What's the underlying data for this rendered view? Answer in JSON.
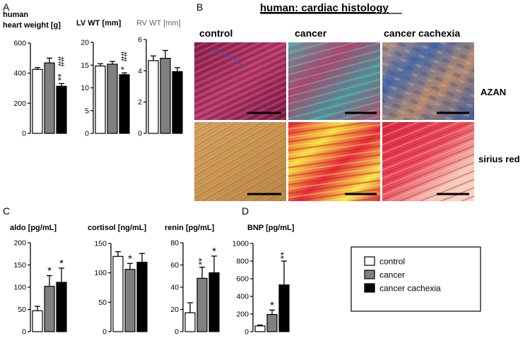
{
  "panel_letters": {
    "a": "A",
    "b": "B",
    "c": "C",
    "d": "D"
  },
  "colors": {
    "control": "#ffffff",
    "cancer": "#808080",
    "cachexia": "#000000"
  },
  "legend": {
    "items": [
      {
        "label": "control",
        "color": "#ffffff"
      },
      {
        "label": "cancer",
        "color": "#808080"
      },
      {
        "label": "cancer cachexia",
        "color": "#000000"
      }
    ]
  },
  "histology": {
    "title": "human: cardiac histology",
    "columns": [
      "control",
      "cancer",
      "cancer cachexia"
    ],
    "rows": [
      "AZAN",
      "sirius red"
    ]
  },
  "chart_data": [
    {
      "type": "bar",
      "panel": "A",
      "ylabel_lines": [
        "human",
        "heart weight [g]"
      ],
      "ylim": [
        0,
        600
      ],
      "yticks": [
        "0",
        "200",
        "400",
        "600"
      ],
      "categories": [
        "control",
        "cancer",
        "cancer cachexia"
      ],
      "values": [
        425,
        468,
        313
      ],
      "errors": [
        12,
        32,
        18
      ],
      "annotations": [
        "",
        "",
        "** ##"
      ]
    },
    {
      "type": "bar",
      "panel": "A",
      "ylabel_lines": [
        "LV WT [mm]"
      ],
      "ylim": [
        0,
        20
      ],
      "yticks": [
        "0",
        "5",
        "10",
        "15",
        "20"
      ],
      "categories": [
        "control",
        "cancer",
        "cancer cachexia"
      ],
      "values": [
        14.8,
        15.2,
        12.9
      ],
      "errors": [
        0.5,
        0.6,
        0.4
      ],
      "annotations": [
        "",
        "",
        "* ##"
      ]
    },
    {
      "type": "bar",
      "panel": "A",
      "ylabel_lines": [
        "RV WT [mm]"
      ],
      "ylim": [
        0,
        6
      ],
      "yticks": [
        "0",
        "2",
        "4",
        "6"
      ],
      "categories": [
        "control",
        "cancer",
        "cancer cachexia"
      ],
      "values": [
        4.65,
        4.8,
        3.95
      ],
      "errors": [
        0.3,
        0.5,
        0.25
      ],
      "annotations": [
        "",
        "",
        ""
      ]
    },
    {
      "type": "bar",
      "panel": "C",
      "ylabel_lines": [
        "aldo [pg/mL]"
      ],
      "ylim": [
        0,
        200
      ],
      "yticks": [
        "0",
        "50",
        "100",
        "150",
        "200"
      ],
      "categories": [
        "control",
        "cancer",
        "cancer cachexia"
      ],
      "values": [
        47,
        102,
        111
      ],
      "errors": [
        10,
        24,
        32
      ],
      "annotations": [
        "",
        "*",
        "*"
      ]
    },
    {
      "type": "bar",
      "panel": "C",
      "ylabel_lines": [
        "cortisol [ng/mL]"
      ],
      "ylim": [
        0,
        150
      ],
      "yticks": [
        "0",
        "50",
        "100",
        "150"
      ],
      "categories": [
        "control",
        "cancer",
        "cancer cachexia"
      ],
      "values": [
        128,
        106,
        118
      ],
      "errors": [
        8,
        10,
        15
      ],
      "annotations": [
        "",
        "*",
        ""
      ]
    },
    {
      "type": "bar",
      "panel": "C",
      "ylabel_lines": [
        "renin [pg/mL]"
      ],
      "ylim": [
        0,
        80
      ],
      "yticks": [
        "0",
        "20",
        "40",
        "60",
        "80"
      ],
      "categories": [
        "control",
        "cancer",
        "cancer cachexia"
      ],
      "values": [
        17,
        48,
        53
      ],
      "errors": [
        9,
        10,
        15
      ],
      "annotations": [
        "",
        "**",
        "*"
      ]
    },
    {
      "type": "bar",
      "panel": "D",
      "ylabel_lines": [
        "BNP [pg/mL]"
      ],
      "ylim": [
        0,
        1000
      ],
      "yticks": [
        "0",
        "200",
        "400",
        "600",
        "800",
        "1000"
      ],
      "categories": [
        "control",
        "cancer",
        "cancer cachexia"
      ],
      "values": [
        65,
        195,
        530
      ],
      "errors": [
        10,
        50,
        270
      ],
      "annotations": [
        "",
        "*",
        "**"
      ]
    }
  ]
}
